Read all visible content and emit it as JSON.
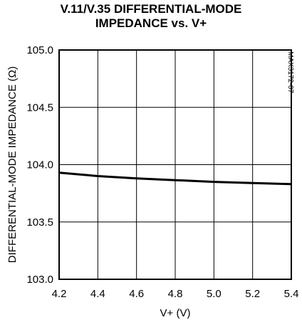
{
  "chart_data": {
    "type": "line",
    "title_lines": [
      "V.11/V.35 DIFFERENTIAL-MODE",
      "IMPEDANCE vs. V+"
    ],
    "xlabel": "V+ (V)",
    "ylabel": "DIFFERENTIAL-MODE IMPEDANCE (Ω)",
    "part_number": "MAX3172-07",
    "xlim": [
      4.2,
      5.4
    ],
    "ylim": [
      103.0,
      105.0
    ],
    "x_ticks": [
      "4.2",
      "4.4",
      "4.6",
      "4.8",
      "5.0",
      "5.2",
      "5.4"
    ],
    "y_ticks": [
      "105.0",
      "104.5",
      "104.0",
      "103.5",
      "103.0"
    ],
    "grid": true,
    "series": [
      {
        "x": [
          4.2,
          4.4,
          4.6,
          4.8,
          5.0,
          5.2,
          5.4
        ],
        "y": [
          103.93,
          103.9,
          103.88,
          103.865,
          103.85,
          103.84,
          103.83
        ],
        "color": "#000000"
      }
    ]
  }
}
